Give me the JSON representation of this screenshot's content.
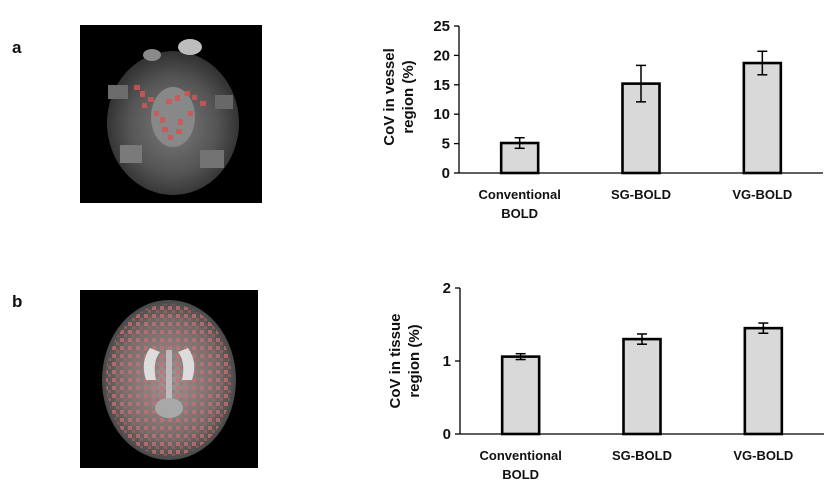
{
  "panels": [
    {
      "label": "a",
      "image": "axial-brain-slice-vessel-overlay"
    },
    {
      "label": "b",
      "image": "axial-brain-slice-tissue-overlay"
    }
  ],
  "colors": {
    "bar_fill": "#d9d9d9",
    "bar_stroke": "#000000",
    "overlay": "#e05050",
    "background": "#000000"
  },
  "chart_data": [
    {
      "type": "bar",
      "categories": [
        [
          "Conventional",
          "BOLD"
        ],
        [
          "SG-BOLD"
        ],
        [
          "VG-BOLD"
        ]
      ],
      "values": [
        5.1,
        15.2,
        18.7
      ],
      "errors": [
        0.9,
        3.1,
        2.0
      ],
      "ylabel": [
        "CoV in vessel",
        "region (%)"
      ],
      "ylim": [
        0,
        25
      ],
      "yticks": [
        0,
        5,
        10,
        15,
        20,
        25
      ],
      "grid": false
    },
    {
      "type": "bar",
      "categories": [
        [
          "Conventional",
          "BOLD"
        ],
        [
          "SG-BOLD"
        ],
        [
          "VG-BOLD"
        ]
      ],
      "values": [
        1.06,
        1.3,
        1.45
      ],
      "errors": [
        0.04,
        0.07,
        0.07
      ],
      "ylabel": [
        "CoV in tissue",
        "region (%)"
      ],
      "ylim": [
        0,
        2
      ],
      "yticks": [
        0,
        1,
        2
      ],
      "grid": false
    }
  ]
}
